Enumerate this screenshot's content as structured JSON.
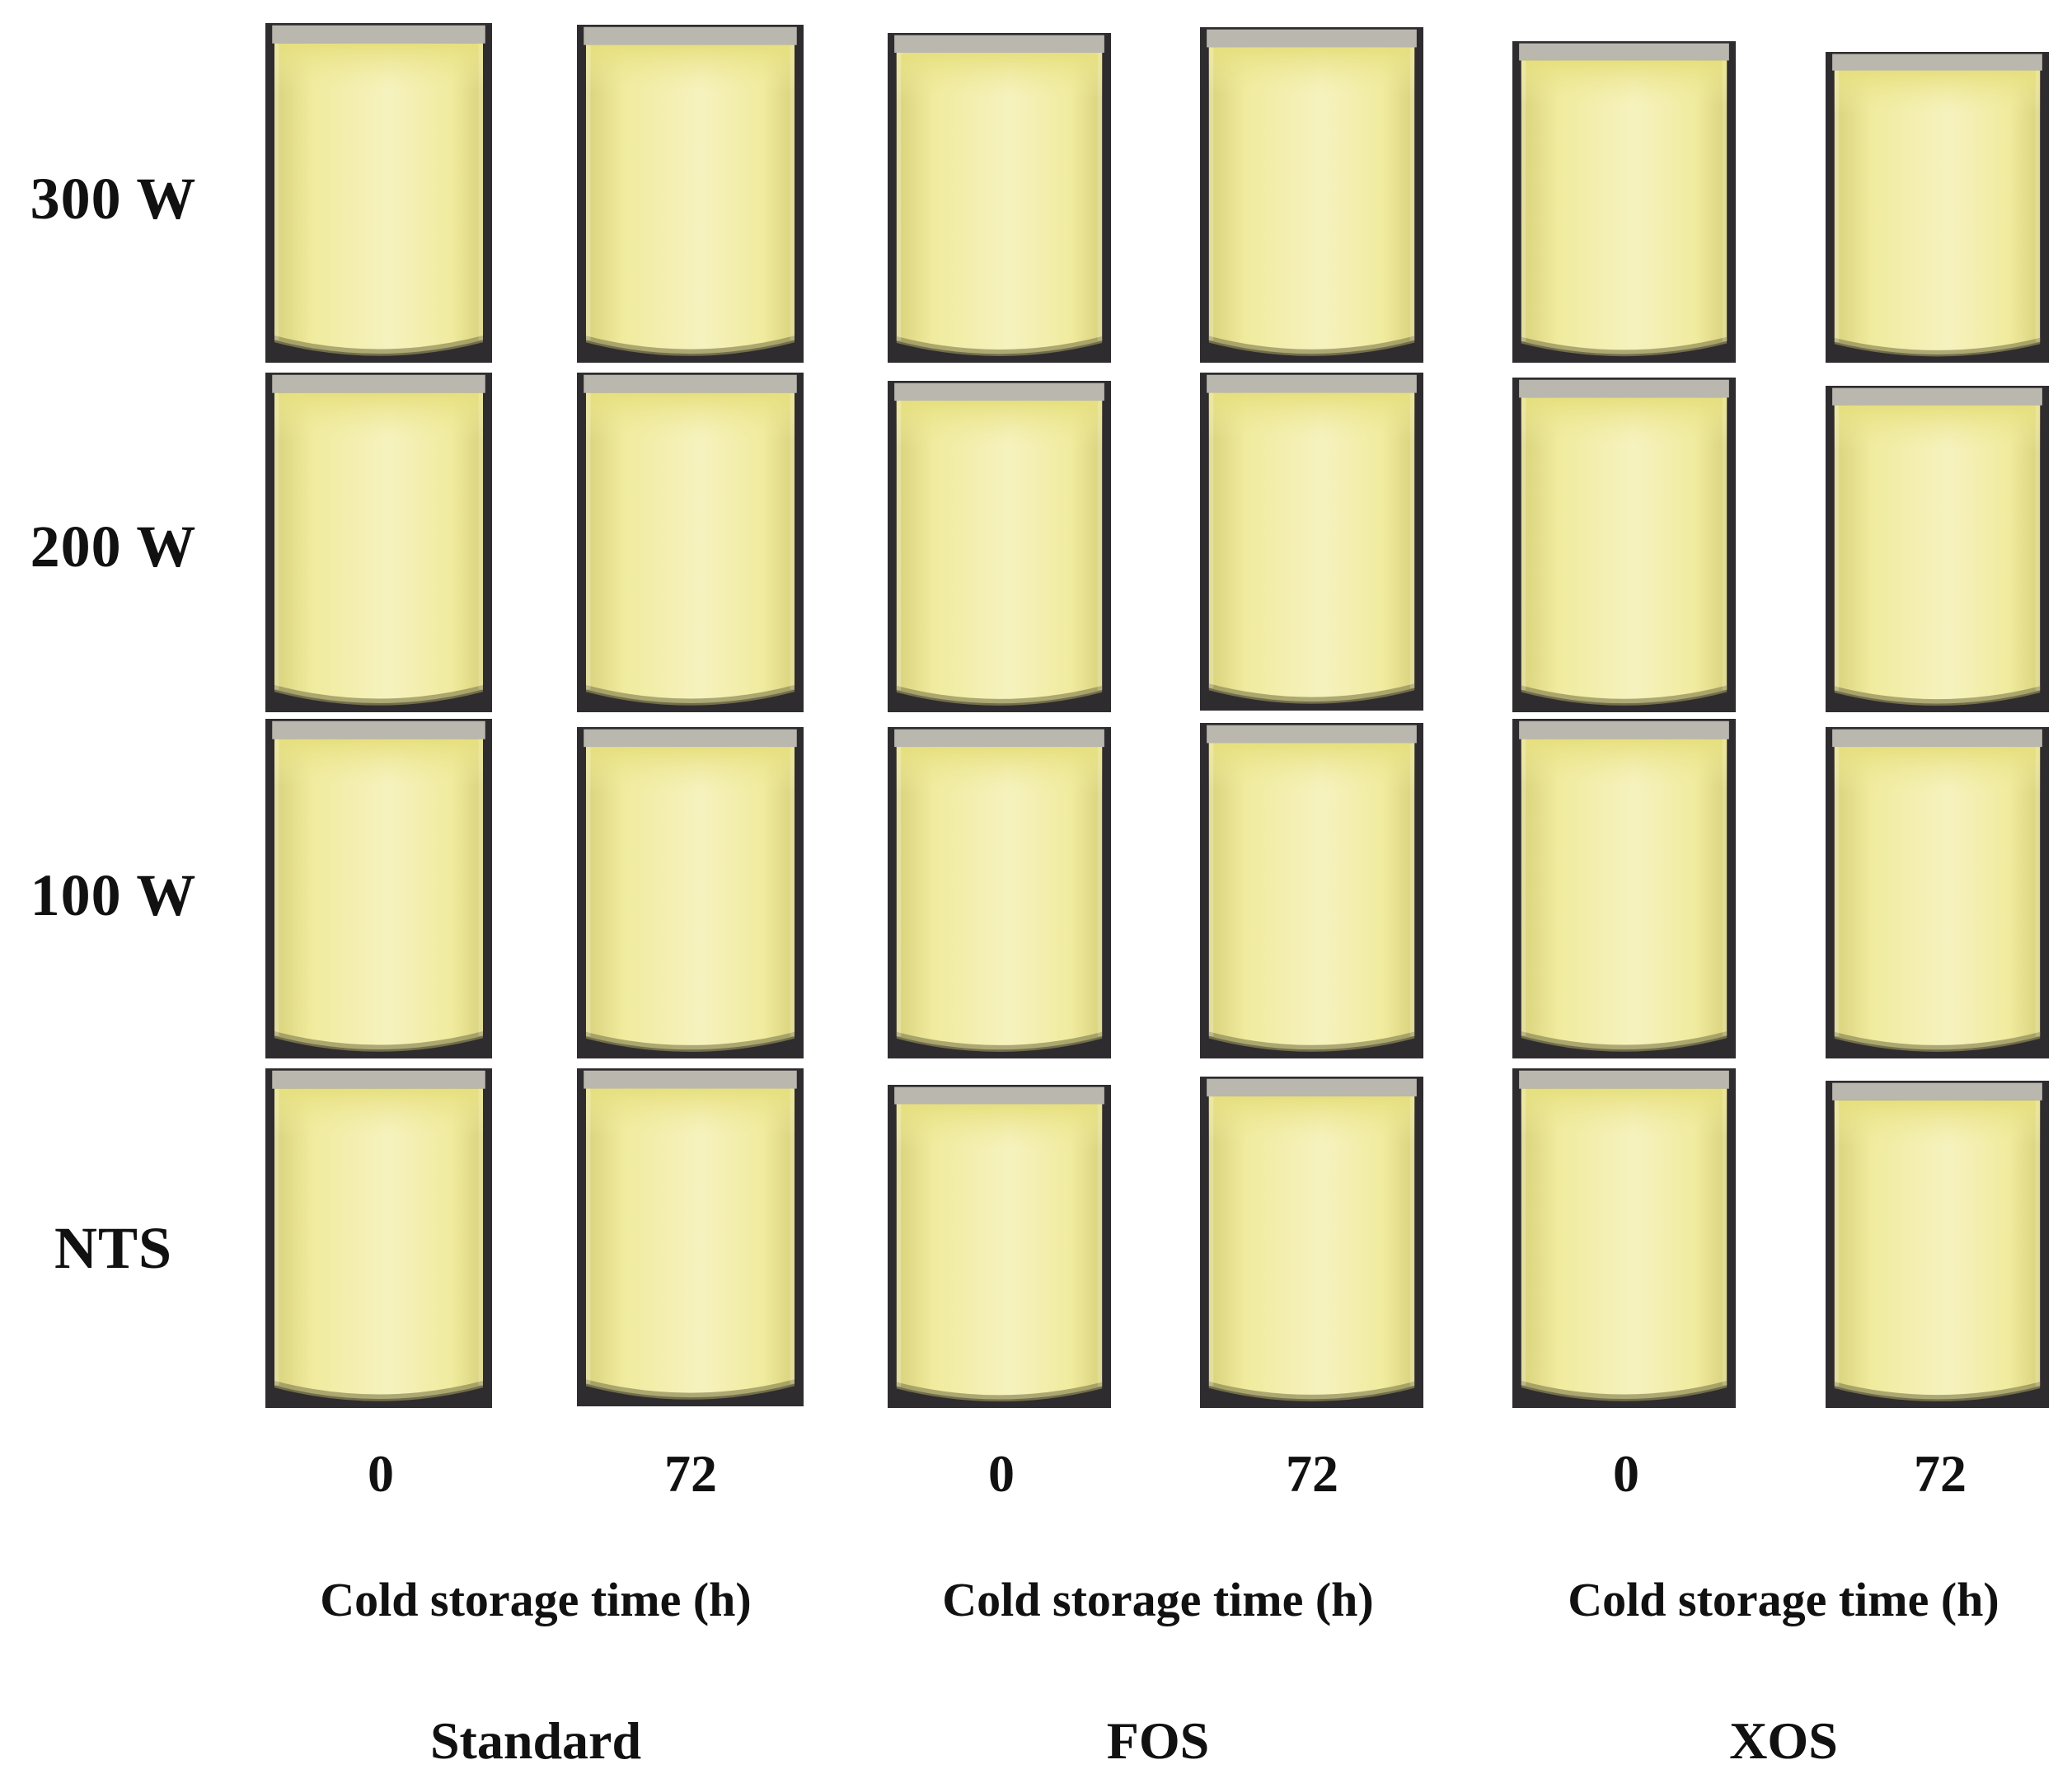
{
  "row_labels": [
    "300 W",
    "200 W",
    "100 W",
    "NTS"
  ],
  "groups": [
    {
      "name": "Standard",
      "times": [
        "0",
        "72"
      ],
      "axis_label": "Cold storage time (h)"
    },
    {
      "name": "FOS",
      "times": [
        "0",
        "72"
      ],
      "axis_label": "Cold storage time (h)"
    },
    {
      "name": "XOS",
      "times": [
        "0",
        "72"
      ],
      "axis_label": "Cold storage time (h)"
    }
  ],
  "photo_subject": "beaker-of-yellow-emulsion",
  "colors": {
    "liquid": "#f0eb9e",
    "liquid_highlight": "#f6f2bf",
    "liquid_shadow": "#d9d27c",
    "background": "#2f2c2f",
    "glass_rim": "#c9c6bc"
  }
}
